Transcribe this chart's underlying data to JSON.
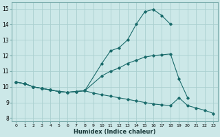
{
  "xlabel": "Humidex (Indice chaleur)",
  "xlim": [
    -0.5,
    23.5
  ],
  "ylim": [
    7.8,
    15.4
  ],
  "yticks": [
    8,
    9,
    10,
    11,
    12,
    13,
    14,
    15
  ],
  "xticks": [
    0,
    1,
    2,
    3,
    4,
    5,
    6,
    7,
    8,
    9,
    10,
    11,
    12,
    13,
    14,
    15,
    16,
    17,
    18,
    19,
    20,
    21,
    22,
    23
  ],
  "background_color": "#cce8e8",
  "grid_color": "#aacfcf",
  "line_color": "#1a6b6b",
  "curve1_x": [
    0,
    1,
    2,
    3,
    4,
    5,
    6,
    7,
    8,
    10,
    11,
    12,
    13,
    14,
    15,
    16,
    17,
    18
  ],
  "curve1_y": [
    10.3,
    10.2,
    10.0,
    9.9,
    9.8,
    9.7,
    9.65,
    9.7,
    9.75,
    11.5,
    12.3,
    12.5,
    13.0,
    14.0,
    14.8,
    14.95,
    14.55,
    14.0
  ],
  "curve2_x": [
    0,
    1,
    2,
    3,
    4,
    5,
    6,
    7,
    8,
    10,
    11,
    12,
    13,
    14,
    15,
    16,
    17,
    18,
    19,
    20
  ],
  "curve2_y": [
    10.3,
    10.2,
    10.0,
    9.9,
    9.8,
    9.7,
    9.65,
    9.7,
    9.75,
    10.7,
    11.0,
    11.2,
    11.5,
    11.7,
    11.9,
    12.0,
    12.05,
    12.1,
    10.5,
    9.3
  ],
  "curve3_x": [
    0,
    1,
    2,
    3,
    4,
    5,
    6,
    7,
    8,
    9,
    10,
    11,
    12,
    13,
    14,
    15,
    16,
    17,
    18,
    19,
    20,
    21,
    22,
    23
  ],
  "curve3_y": [
    10.3,
    10.2,
    10.0,
    9.9,
    9.8,
    9.7,
    9.65,
    9.7,
    9.75,
    9.6,
    9.5,
    9.4,
    9.3,
    9.2,
    9.1,
    9.0,
    8.9,
    8.85,
    8.8,
    9.3,
    8.8,
    8.65,
    8.5,
    8.3
  ]
}
